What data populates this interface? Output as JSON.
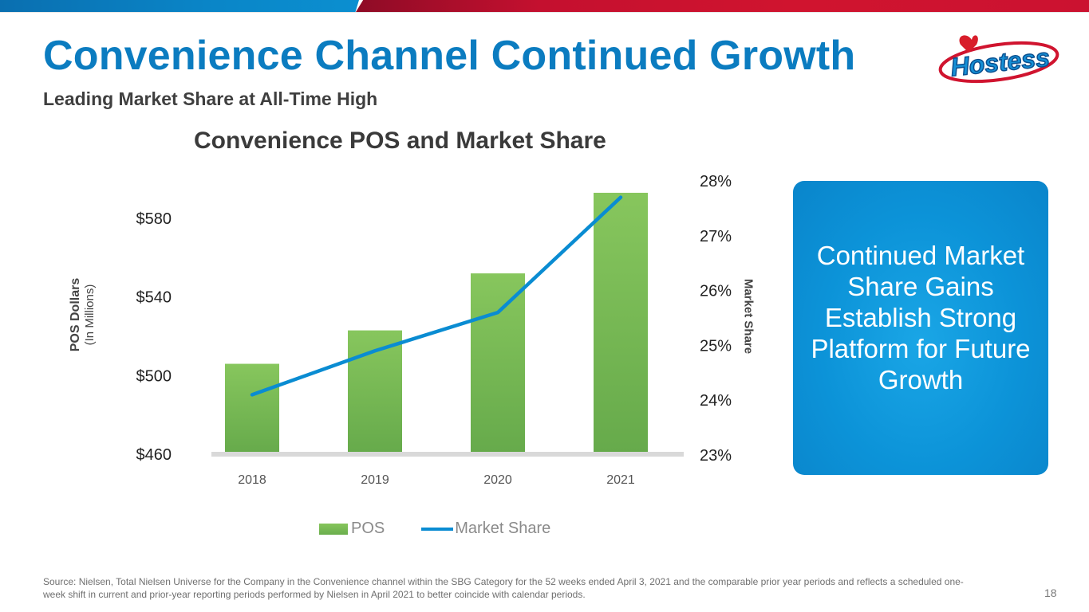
{
  "slide": {
    "title": "Convenience Channel Continued Growth",
    "subtitle": "Leading Market Share at All-Time High",
    "logo_text": "Hostess",
    "logo_icon": "hostess-heart-logo",
    "callout_text": "Continued Market Share Gains Establish Strong Platform for Future Growth",
    "source_note": "Source: Nielsen, Total Nielsen Universe for the Company in the Convenience channel within the SBG Category for the 52 weeks ended April 3, 2021 and the comparable prior year periods  and reflects a scheduled one-week shift in current and prior-year reporting periods performed by Nielsen in April 2021 to better coincide with calendar periods.",
    "page_number": "18",
    "colors": {
      "title_blue": "#0b7cc0",
      "bar_green": "#78b955",
      "line_blue": "#0a8cd2",
      "top_bar_red": "#d0142f",
      "callout_blue": "#0c93d8"
    }
  },
  "chart_data": {
    "type": "bar",
    "title": "Convenience POS and Market Share",
    "categories": [
      "2018",
      "2019",
      "2020",
      "2021"
    ],
    "series": [
      {
        "name": "POS",
        "kind": "bar",
        "axis": "left",
        "values": [
          506,
          523,
          552,
          593
        ]
      },
      {
        "name": "Market Share",
        "kind": "line",
        "axis": "right",
        "values": [
          24.1,
          24.9,
          25.6,
          27.7
        ]
      }
    ],
    "ylabel": "POS Dollars",
    "ylabel_sub": "(In Millions)",
    "y2label": "Market Share",
    "ylim": [
      460,
      580
    ],
    "y2lim": [
      23,
      28
    ],
    "yticks": [
      "$460",
      "$500",
      "$540",
      "$580"
    ],
    "y2ticks": [
      "23%",
      "24%",
      "25%",
      "26%",
      "27%",
      "28%"
    ],
    "grid": false,
    "legend": {
      "position": "bottom",
      "entries": [
        "POS",
        "Market Share"
      ]
    }
  }
}
